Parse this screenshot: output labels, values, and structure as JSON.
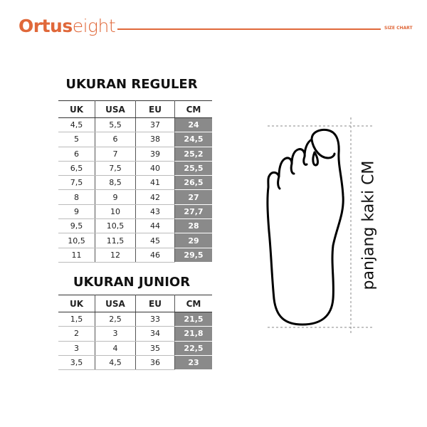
{
  "header": {
    "brand_bold": "Ortus",
    "brand_light": "eight",
    "label": "SIZE CHART",
    "accent": "#e0683a"
  },
  "columns": [
    "UK",
    "USA",
    "EU",
    "CM"
  ],
  "regular": {
    "title": "UKURAN REGULER",
    "rows": [
      [
        "4,5",
        "5,5",
        "37",
        "24"
      ],
      [
        "5",
        "6",
        "38",
        "24,5"
      ],
      [
        "6",
        "7",
        "39",
        "25,2"
      ],
      [
        "6,5",
        "7,5",
        "40",
        "25,5"
      ],
      [
        "7,5",
        "8,5",
        "41",
        "26,5"
      ],
      [
        "8",
        "9",
        "42",
        "27"
      ],
      [
        "9",
        "10",
        "43",
        "27,7"
      ],
      [
        "9,5",
        "10,5",
        "44",
        "28"
      ],
      [
        "10,5",
        "11,5",
        "45",
        "29"
      ],
      [
        "11",
        "12",
        "46",
        "29,5"
      ]
    ]
  },
  "junior": {
    "title": "UKURAN JUNIOR",
    "rows": [
      [
        "1,5",
        "2,5",
        "33",
        "21,5"
      ],
      [
        "2",
        "3",
        "34",
        "21,8"
      ],
      [
        "3",
        "4",
        "35",
        "22,5"
      ],
      [
        "3,5",
        "4,5",
        "36",
        "23"
      ]
    ]
  },
  "foot": {
    "label": "panjang kaki CM",
    "icon": "foot-outline-icon"
  }
}
